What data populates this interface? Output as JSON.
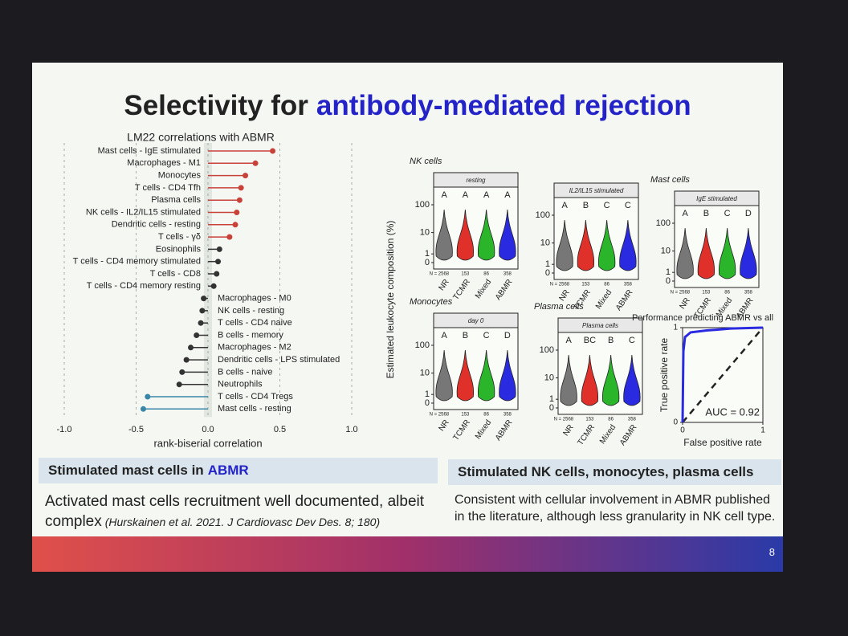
{
  "slide": {
    "title": "Selectivity for",
    "title_highlight": "antibody-mediated rejection",
    "left_heading": "Stimulated mast cells in",
    "left_heading_highlight": "ABMR",
    "left_body": "Activated mast cells recruitment well documented, albeit complex",
    "left_citation": "(Hurskainen et al. 2021. J Cardiovasc Dev Des. 8; 180)",
    "right_heading": "Stimulated NK cells, monocytes, plasma cells",
    "right_body": "Consistent with cellular involvement in ABMR published in the literature, although less granularity in NK cell type.",
    "page_number": "8"
  },
  "chart_data": [
    {
      "type": "lollipop",
      "title": "LM22 correlations with ABMR",
      "xlabel": "rank-biserial correlation",
      "categories": [
        "Mast cells - IgE stimulated",
        "Macrophages - M1",
        "Monocytes",
        "T cells - CD4 Tfh",
        "Plasma cells",
        "NK cells - IL2/IL15 stimulated",
        "Dendritic cells - resting",
        "T cells - γδ",
        "Eosinophils",
        "T cells - CD4 memory stimulated",
        "T cells - CD8",
        "T cells - CD4 memory resting",
        "Macrophages - M0",
        "NK cells - resting",
        "T cells - CD4 naive",
        "B cells - memory",
        "Macrophages - M2",
        "Dendritic cells - LPS stimulated",
        "B cells - naive",
        "Neutrophils",
        "T cells - CD4 Tregs",
        "Mast cells - resting"
      ],
      "values": [
        0.45,
        0.33,
        0.26,
        0.23,
        0.22,
        0.2,
        0.19,
        0.15,
        0.08,
        0.07,
        0.06,
        0.04,
        -0.03,
        -0.04,
        -0.05,
        -0.08,
        -0.12,
        -0.15,
        -0.18,
        -0.2,
        -0.42,
        -0.45
      ],
      "colors": [
        "#c8423a",
        "#c8423a",
        "#c8423a",
        "#c8423a",
        "#c8423a",
        "#c8423a",
        "#c8423a",
        "#c8423a",
        "#333333",
        "#333333",
        "#333333",
        "#333333",
        "#333333",
        "#333333",
        "#333333",
        "#333333",
        "#333333",
        "#333333",
        "#333333",
        "#333333",
        "#3a86a8",
        "#3a86a8"
      ],
      "xlim": [
        -1,
        1
      ],
      "xticks": [
        {
          "value": -1,
          "label": "-1.0"
        },
        -0.5,
        {
          "value": 0,
          "label": "0.0"
        },
        0.5,
        {
          "value": 1,
          "label": "1.0"
        }
      ],
      "grid": true
    },
    {
      "type": "violin",
      "ylabel": "Estimated leukocyte composition (%)",
      "categories": [
        "NR",
        "TCMR",
        "Mixed",
        "ABMR"
      ],
      "colors": [
        "#777777",
        "#e0302a",
        "#2bb52b",
        "#2a2ae0"
      ],
      "n_labels": [
        "N = 2568",
        "153",
        "86",
        "358"
      ],
      "yticks": [
        0,
        1,
        10,
        100
      ],
      "log_scale": true,
      "panels": [
        {
          "title": "NK cells",
          "strip": "resting",
          "letters": [
            "A",
            "A",
            "A",
            "A"
          ]
        },
        {
          "strip": "IL2/IL15 stimulated",
          "letters": [
            "A",
            "B",
            "C",
            "C"
          ]
        },
        {
          "title": "Mast cells",
          "strip": "IgE stimulated",
          "letters": [
            "A",
            "B",
            "C",
            "D"
          ]
        },
        {
          "title": "Monocytes",
          "strip": "day 0",
          "letters": [
            "A",
            "B",
            "C",
            "D"
          ]
        },
        {
          "title": "Plasma cells",
          "strip": "Plasma cells",
          "letters": [
            "A",
            "BC",
            "B",
            "C"
          ]
        }
      ]
    },
    {
      "type": "line",
      "title": "Performance predicting ABMR vs all",
      "xlabel": "False positive rate",
      "ylabel": "True positive rate",
      "annotation": "AUC = 0.92",
      "color": "#2a2ae0",
      "x": [
        0,
        0.01,
        0.03,
        0.1,
        0.3,
        0.6,
        1
      ],
      "y": [
        0,
        0.75,
        0.9,
        0.95,
        0.97,
        0.99,
        1
      ],
      "xlim": [
        0,
        1
      ],
      "ylim": [
        0,
        1
      ],
      "xticks": [
        0,
        1
      ],
      "yticks": [
        0,
        1
      ]
    }
  ]
}
